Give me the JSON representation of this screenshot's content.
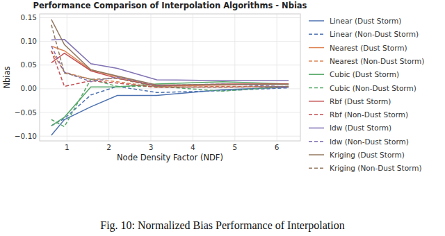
{
  "chart_data": {
    "type": "line",
    "title": "Performance Comparison of Interpolation Algorithms - Nbias",
    "x_label": "Node Density Factor (NDF)",
    "y_label": "Nbias",
    "caption": "Fig. 10: Normalized Bias Performance of Interpolation",
    "x": [
      0.63,
      0.94,
      1.57,
      2.2,
      3.14,
      4.71,
      6.28
    ],
    "xlim": [
      0.35,
      6.56
    ],
    "xticks": [
      1,
      2,
      3,
      4,
      5,
      6
    ],
    "ylim": [
      -0.11,
      0.158
    ],
    "yticks": [
      {
        "value": -0.1,
        "label": "−0.10"
      },
      {
        "value": -0.05,
        "label": "−0.05"
      },
      {
        "value": 0,
        "label": "0.00"
      },
      {
        "value": 0.05,
        "label": "0.05"
      },
      {
        "value": 0.1,
        "label": "0.10"
      },
      {
        "value": 0.15,
        "label": "0.15"
      }
    ],
    "grid": true,
    "legend": "right",
    "series": [
      {
        "name": "Linear (Dust Storm)",
        "color": "#4c72b0",
        "line_style": "solid",
        "values": [
          -0.098,
          -0.065,
          -0.038,
          -0.014,
          -0.014,
          -0.002,
          0.003
        ]
      },
      {
        "name": "Linear (Non-Dust Storm)",
        "color": "#4c72b0",
        "line_style": "dashed",
        "values": [
          -0.078,
          -0.063,
          -0.013,
          0.005,
          -0.008,
          -0.004,
          0.002
        ]
      },
      {
        "name": "Nearest (Dust Storm)",
        "color": "#dd8452",
        "line_style": "solid",
        "values": [
          0.09,
          0.08,
          0.04,
          0.025,
          0.005,
          0.008,
          0.01
        ]
      },
      {
        "name": "Nearest (Non-Dust Storm)",
        "color": "#dd8452",
        "line_style": "dashed",
        "values": [
          0.08,
          0.035,
          0.02,
          0.015,
          0.003,
          0.005,
          0.004
        ]
      },
      {
        "name": "Cubic (Dust Storm)",
        "color": "#55a868",
        "line_style": "solid",
        "values": [
          -0.078,
          -0.06,
          0.004,
          0.004,
          0.01,
          0.015,
          0.01
        ]
      },
      {
        "name": "Cubic (Non-Dust Storm)",
        "color": "#55a868",
        "line_style": "dashed",
        "values": [
          -0.065,
          -0.08,
          0.02,
          0.005,
          0.005,
          -0.005,
          0.005
        ]
      },
      {
        "name": "Rbf (Dust Storm)",
        "color": "#c44e52",
        "line_style": "solid",
        "values": [
          0.055,
          0.075,
          0.038,
          0.022,
          0.006,
          0.01,
          0.01
        ]
      },
      {
        "name": "Rbf (Non-Dust Storm)",
        "color": "#c44e52",
        "line_style": "dashed",
        "values": [
          0.08,
          0.005,
          0.017,
          0.012,
          0.003,
          0.004,
          0.004
        ]
      },
      {
        "name": "Idw (Dust Storm)",
        "color": "#8172b3",
        "line_style": "solid",
        "values": [
          0.103,
          0.104,
          0.053,
          0.043,
          0.019,
          0.017,
          0.017
        ]
      },
      {
        "name": "Idw (Non-Dust Storm)",
        "color": "#8172b3",
        "line_style": "dashed",
        "values": [
          0.09,
          0.035,
          0.015,
          0.025,
          0.007,
          0.01,
          0.004
        ]
      },
      {
        "name": "Kriging (Dust Storm)",
        "color": "#937860",
        "line_style": "solid",
        "values": [
          0.146,
          0.093,
          0.04,
          0.027,
          0.008,
          0.009,
          0.009
        ]
      },
      {
        "name": "Kriging (Non-Dust Storm)",
        "color": "#937860",
        "line_style": "dashed",
        "values": [
          0.135,
          0.033,
          0.02,
          0.022,
          0.004,
          0.003,
          0.005
        ]
      }
    ]
  }
}
